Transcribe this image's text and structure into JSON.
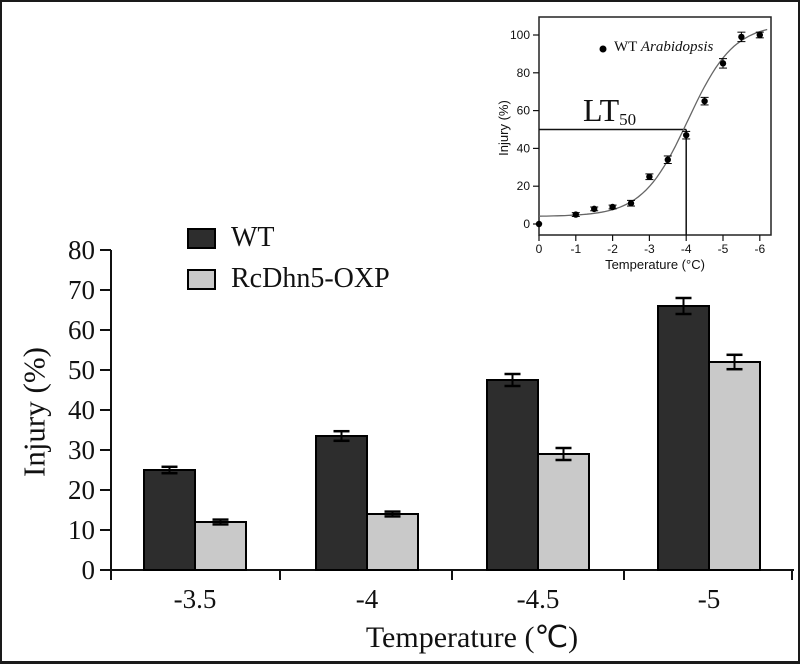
{
  "colors": {
    "wt_bar": "#2d2d2d",
    "oxp_bar": "#c9c9c9",
    "bar_border": "#000000",
    "axis": "#111111",
    "inset_frame": "#222222",
    "curve": "#666666"
  },
  "chart_data": [
    {
      "type": "bar",
      "title": "",
      "categories": [
        "-3.5",
        "-4",
        "-4.5",
        "-5"
      ],
      "series": [
        {
          "name": "WT",
          "color": "#2d2d2d",
          "values": [
            25,
            33.5,
            47.5,
            66
          ],
          "errors": [
            0.8,
            1.2,
            1.5,
            2.0
          ]
        },
        {
          "name": "RcDhn5-OXP",
          "color": "#c9c9c9",
          "values": [
            12,
            14,
            29,
            52
          ],
          "errors": [
            0.6,
            0.6,
            1.5,
            1.8
          ]
        }
      ],
      "xlabel": "Temperature (℃)",
      "ylabel": "Injury (%)",
      "ylim": [
        0,
        80
      ],
      "yticks": [
        0,
        10,
        20,
        30,
        40,
        50,
        60,
        70,
        80
      ],
      "grid": false,
      "legend_position": "upper-left"
    },
    {
      "type": "scatter",
      "name": "inset",
      "legend_label": "WT",
      "legend_species": "Arabidopsis",
      "annotation": {
        "text": "LT",
        "sub": "50"
      },
      "lt50_value": -4,
      "x": [
        0,
        -1,
        -1.5,
        -2,
        -2.5,
        -3,
        -3.5,
        -4,
        -4.5,
        -5,
        -5.5,
        -6
      ],
      "y": [
        0,
        5,
        8,
        9,
        11,
        25,
        34,
        47,
        65,
        85,
        99,
        100
      ],
      "errors": [
        0.5,
        1,
        1,
        1,
        1.5,
        1.5,
        2,
        2,
        2,
        2.5,
        2.5,
        1.5
      ],
      "fit": {
        "base": 4,
        "span": 102,
        "mid": -4.05,
        "slope": 0.62
      },
      "xlabel": "Temperature (°C)",
      "ylabel": "Injury (%)",
      "xticks": [
        0,
        -1,
        -2,
        -3,
        -4,
        -5,
        -6
      ],
      "yticks": [
        0,
        20,
        40,
        60,
        80,
        100
      ],
      "xlim": [
        0,
        -6.3
      ],
      "ylim": [
        0,
        100
      ],
      "grid": false
    }
  ]
}
